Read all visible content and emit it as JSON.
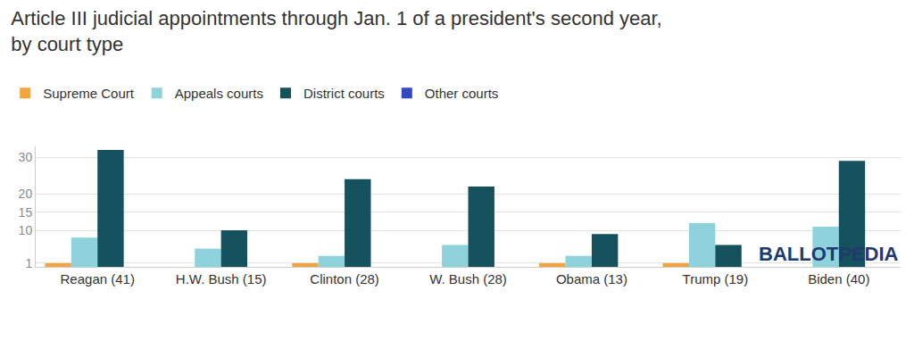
{
  "chart_data": {
    "type": "bar",
    "title": "Article III judicial appointments through Jan. 1 of a president's second year, by court type",
    "categories": [
      "Reagan (41)",
      "H.W. Bush (15)",
      "Clinton (28)",
      "W. Bush (28)",
      "Obama (13)",
      "Trump (19)",
      "Biden (40)"
    ],
    "series": [
      {
        "name": "Supreme Court",
        "color": "#f2a53a",
        "values": [
          1,
          0,
          1,
          0,
          1,
          1,
          0
        ]
      },
      {
        "name": "Appeals courts",
        "color": "#8ed2dc",
        "values": [
          8,
          5,
          3,
          6,
          3,
          12,
          11
        ]
      },
      {
        "name": "District courts",
        "color": "#15525d",
        "values": [
          32,
          10,
          24,
          22,
          9,
          6,
          29
        ]
      },
      {
        "name": "Other courts",
        "color": "#3448c4",
        "values": [
          0,
          0,
          0,
          0,
          0,
          0,
          0
        ]
      }
    ],
    "ylim": [
      0,
      33
    ],
    "yticks": [
      1,
      10,
      15,
      20,
      30
    ],
    "grid": true,
    "legend": "top left",
    "annotations": [
      "BALLOTPEDIA"
    ]
  }
}
